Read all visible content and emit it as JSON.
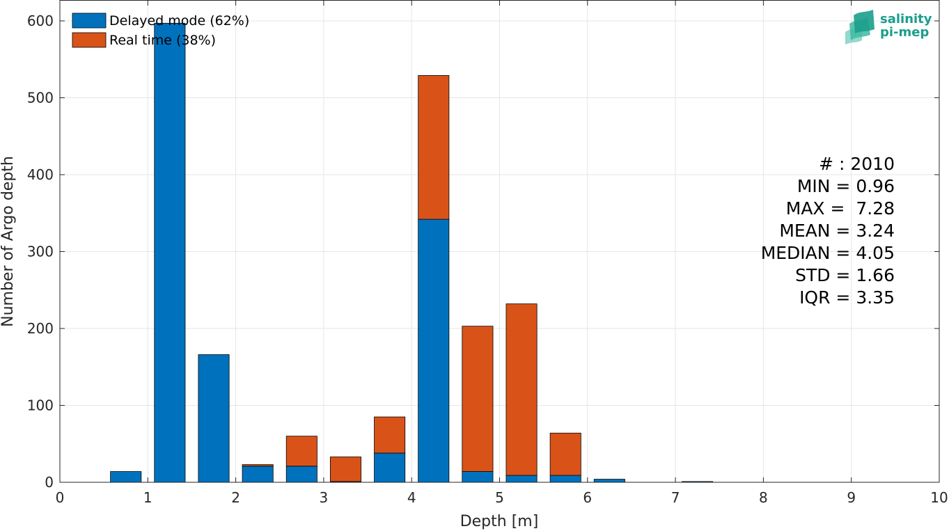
{
  "chart_data": {
    "type": "bar",
    "stacked": true,
    "xlabel": "Depth [m]",
    "ylabel": "Number of Argo depth",
    "xlim": [
      0,
      10
    ],
    "ylim": [
      0,
      600
    ],
    "xticks": [
      "0",
      "1",
      "2",
      "3",
      "4",
      "5",
      "6",
      "7",
      "8",
      "9",
      "10"
    ],
    "yticks": [
      "0",
      "100",
      "200",
      "300",
      "400",
      "500",
      "600"
    ],
    "grid": true,
    "legend_position": "top-left",
    "bin_width": 0.5,
    "x": [
      0.75,
      1.25,
      1.75,
      2.25,
      2.75,
      3.25,
      3.75,
      4.25,
      4.75,
      5.25,
      5.75,
      6.25,
      6.75,
      7.25
    ],
    "series": [
      {
        "name": "Delayed mode (62%)",
        "color": "#0072bd",
        "values": [
          14,
          597,
          166,
          21,
          21,
          1,
          38,
          342,
          14,
          9,
          9,
          4,
          0,
          1
        ]
      },
      {
        "name": "Real time (38%)",
        "color": "#d95319",
        "values": [
          0,
          0,
          0,
          2,
          39,
          32,
          47,
          187,
          189,
          223,
          55,
          0,
          0,
          0
        ]
      }
    ],
    "stats": [
      "# : 2010",
      "MIN = 0.96",
      "MAX =  7.28",
      "MEAN = 3.24",
      "MEDIAN = 4.05",
      "STD = 1.66",
      "IQR = 3.35"
    ],
    "logo": {
      "line1": "salinity",
      "line2": "pi-mep"
    }
  }
}
